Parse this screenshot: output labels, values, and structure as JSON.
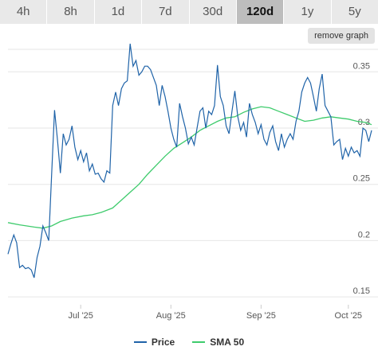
{
  "tabs": [
    {
      "label": "4h"
    },
    {
      "label": "8h"
    },
    {
      "label": "1d"
    },
    {
      "label": "7d"
    },
    {
      "label": "30d"
    },
    {
      "label": "120d",
      "active": true
    },
    {
      "label": "1y"
    },
    {
      "label": "5y"
    }
  ],
  "remove_graph_label": "remove graph",
  "colors": {
    "price": "#1f63a8",
    "sma": "#3ecb6c",
    "grid": "#e6e6e6"
  },
  "chart_data": {
    "type": "line",
    "x_range": [
      "2025-06-06",
      "2025-10-09"
    ],
    "x_ticks": [
      {
        "date": "2025-07-01",
        "label": "Jul '25"
      },
      {
        "date": "2025-08-01",
        "label": "Aug '25"
      },
      {
        "date": "2025-09-01",
        "label": "Sep '25"
      },
      {
        "date": "2025-10-01",
        "label": "Oct '25"
      }
    ],
    "ylim": [
      0.143,
      0.37
    ],
    "y_ticks": [
      0.15,
      0.2,
      0.25,
      0.3,
      0.35
    ],
    "y_tick_labels": [
      "0.15",
      "0.2",
      "0.25",
      "0.3",
      "0.35"
    ],
    "grid": true,
    "legend_position": "bottom-center",
    "series": [
      {
        "name": "Price",
        "points": [
          [
            "2025-06-06",
            0.188
          ],
          [
            "2025-06-07",
            0.197
          ],
          [
            "2025-06-08",
            0.205
          ],
          [
            "2025-06-09",
            0.198
          ],
          [
            "2025-06-10",
            0.176
          ],
          [
            "2025-06-11",
            0.178
          ],
          [
            "2025-06-12",
            0.175
          ],
          [
            "2025-06-13",
            0.176
          ],
          [
            "2025-06-14",
            0.174
          ],
          [
            "2025-06-15",
            0.167
          ],
          [
            "2025-06-16",
            0.185
          ],
          [
            "2025-06-17",
            0.195
          ],
          [
            "2025-06-18",
            0.213
          ],
          [
            "2025-06-19",
            0.207
          ],
          [
            "2025-06-20",
            0.2
          ],
          [
            "2025-06-21",
            0.258
          ],
          [
            "2025-06-22",
            0.316
          ],
          [
            "2025-06-23",
            0.29
          ],
          [
            "2025-06-24",
            0.26
          ],
          [
            "2025-06-25",
            0.295
          ],
          [
            "2025-06-26",
            0.285
          ],
          [
            "2025-06-27",
            0.29
          ],
          [
            "2025-06-28",
            0.302
          ],
          [
            "2025-06-29",
            0.283
          ],
          [
            "2025-06-30",
            0.272
          ],
          [
            "2025-07-01",
            0.28
          ],
          [
            "2025-07-02",
            0.27
          ],
          [
            "2025-07-03",
            0.278
          ],
          [
            "2025-07-04",
            0.262
          ],
          [
            "2025-07-05",
            0.268
          ],
          [
            "2025-07-06",
            0.259
          ],
          [
            "2025-07-07",
            0.26
          ],
          [
            "2025-07-08",
            0.255
          ],
          [
            "2025-07-09",
            0.252
          ],
          [
            "2025-07-10",
            0.262
          ],
          [
            "2025-07-11",
            0.26
          ],
          [
            "2025-07-12",
            0.32
          ],
          [
            "2025-07-13",
            0.332
          ],
          [
            "2025-07-14",
            0.32
          ],
          [
            "2025-07-15",
            0.335
          ],
          [
            "2025-07-16",
            0.34
          ],
          [
            "2025-07-17",
            0.342
          ],
          [
            "2025-07-18",
            0.375
          ],
          [
            "2025-07-19",
            0.355
          ],
          [
            "2025-07-20",
            0.36
          ],
          [
            "2025-07-21",
            0.347
          ],
          [
            "2025-07-22",
            0.35
          ],
          [
            "2025-07-23",
            0.355
          ],
          [
            "2025-07-24",
            0.355
          ],
          [
            "2025-07-25",
            0.352
          ],
          [
            "2025-07-26",
            0.345
          ],
          [
            "2025-07-27",
            0.338
          ],
          [
            "2025-07-28",
            0.32
          ],
          [
            "2025-07-29",
            0.338
          ],
          [
            "2025-07-30",
            0.328
          ],
          [
            "2025-07-31",
            0.315
          ],
          [
            "2025-08-01",
            0.3
          ],
          [
            "2025-08-02",
            0.29
          ],
          [
            "2025-08-03",
            0.283
          ],
          [
            "2025-08-04",
            0.322
          ],
          [
            "2025-08-05",
            0.31
          ],
          [
            "2025-08-06",
            0.3
          ],
          [
            "2025-08-07",
            0.286
          ],
          [
            "2025-08-08",
            0.292
          ],
          [
            "2025-08-09",
            0.285
          ],
          [
            "2025-08-10",
            0.3
          ],
          [
            "2025-08-11",
            0.315
          ],
          [
            "2025-08-12",
            0.318
          ],
          [
            "2025-08-13",
            0.3
          ],
          [
            "2025-08-14",
            0.315
          ],
          [
            "2025-08-15",
            0.312
          ],
          [
            "2025-08-16",
            0.32
          ],
          [
            "2025-08-17",
            0.356
          ],
          [
            "2025-08-18",
            0.328
          ],
          [
            "2025-08-19",
            0.32
          ],
          [
            "2025-08-20",
            0.302
          ],
          [
            "2025-08-21",
            0.295
          ],
          [
            "2025-08-22",
            0.315
          ],
          [
            "2025-08-23",
            0.333
          ],
          [
            "2025-08-24",
            0.31
          ],
          [
            "2025-08-25",
            0.298
          ],
          [
            "2025-08-26",
            0.305
          ],
          [
            "2025-08-27",
            0.292
          ],
          [
            "2025-08-28",
            0.322
          ],
          [
            "2025-08-29",
            0.312
          ],
          [
            "2025-08-30",
            0.305
          ],
          [
            "2025-08-31",
            0.295
          ],
          [
            "2025-09-01",
            0.303
          ],
          [
            "2025-09-02",
            0.29
          ],
          [
            "2025-09-03",
            0.285
          ],
          [
            "2025-09-04",
            0.296
          ],
          [
            "2025-09-05",
            0.302
          ],
          [
            "2025-09-06",
            0.288
          ],
          [
            "2025-09-07",
            0.28
          ],
          [
            "2025-09-08",
            0.295
          ],
          [
            "2025-09-09",
            0.283
          ],
          [
            "2025-09-10",
            0.29
          ],
          [
            "2025-09-11",
            0.295
          ],
          [
            "2025-09-12",
            0.29
          ],
          [
            "2025-09-13",
            0.306
          ],
          [
            "2025-09-14",
            0.315
          ],
          [
            "2025-09-15",
            0.332
          ],
          [
            "2025-09-16",
            0.34
          ],
          [
            "2025-09-17",
            0.345
          ],
          [
            "2025-09-18",
            0.34
          ],
          [
            "2025-09-19",
            0.328
          ],
          [
            "2025-09-20",
            0.315
          ],
          [
            "2025-09-21",
            0.335
          ],
          [
            "2025-09-22",
            0.348
          ],
          [
            "2025-09-23",
            0.32
          ],
          [
            "2025-09-24",
            0.315
          ],
          [
            "2025-09-25",
            0.31
          ],
          [
            "2025-09-26",
            0.285
          ],
          [
            "2025-09-27",
            0.288
          ],
          [
            "2025-09-28",
            0.29
          ],
          [
            "2025-09-29",
            0.272
          ],
          [
            "2025-09-30",
            0.282
          ],
          [
            "2025-10-01",
            0.275
          ],
          [
            "2025-10-02",
            0.283
          ],
          [
            "2025-10-03",
            0.278
          ],
          [
            "2025-10-04",
            0.28
          ],
          [
            "2025-10-05",
            0.275
          ],
          [
            "2025-10-06",
            0.3
          ],
          [
            "2025-10-07",
            0.298
          ],
          [
            "2025-10-08",
            0.288
          ],
          [
            "2025-10-09",
            0.298
          ]
        ]
      },
      {
        "name": "SMA 50",
        "points": [
          [
            "2025-06-06",
            0.216
          ],
          [
            "2025-06-10",
            0.214
          ],
          [
            "2025-06-15",
            0.212
          ],
          [
            "2025-06-18",
            0.211
          ],
          [
            "2025-06-21",
            0.213
          ],
          [
            "2025-06-24",
            0.217
          ],
          [
            "2025-06-28",
            0.22
          ],
          [
            "2025-07-02",
            0.222
          ],
          [
            "2025-07-05",
            0.223
          ],
          [
            "2025-07-08",
            0.225
          ],
          [
            "2025-07-12",
            0.229
          ],
          [
            "2025-07-15",
            0.236
          ],
          [
            "2025-07-18",
            0.243
          ],
          [
            "2025-07-21",
            0.25
          ],
          [
            "2025-07-24",
            0.259
          ],
          [
            "2025-07-27",
            0.267
          ],
          [
            "2025-07-30",
            0.275
          ],
          [
            "2025-08-02",
            0.282
          ],
          [
            "2025-08-05",
            0.287
          ],
          [
            "2025-08-08",
            0.292
          ],
          [
            "2025-08-11",
            0.298
          ],
          [
            "2025-08-14",
            0.302
          ],
          [
            "2025-08-17",
            0.306
          ],
          [
            "2025-08-20",
            0.309
          ],
          [
            "2025-08-23",
            0.31
          ],
          [
            "2025-08-26",
            0.314
          ],
          [
            "2025-08-29",
            0.317
          ],
          [
            "2025-09-01",
            0.319
          ],
          [
            "2025-09-04",
            0.318
          ],
          [
            "2025-09-07",
            0.315
          ],
          [
            "2025-09-10",
            0.312
          ],
          [
            "2025-09-13",
            0.309
          ],
          [
            "2025-09-16",
            0.306
          ],
          [
            "2025-09-19",
            0.307
          ],
          [
            "2025-09-22",
            0.309
          ],
          [
            "2025-09-25",
            0.31
          ],
          [
            "2025-09-28",
            0.309
          ],
          [
            "2025-10-01",
            0.308
          ],
          [
            "2025-10-04",
            0.306
          ],
          [
            "2025-10-07",
            0.305
          ],
          [
            "2025-10-09",
            0.303
          ]
        ]
      }
    ]
  }
}
